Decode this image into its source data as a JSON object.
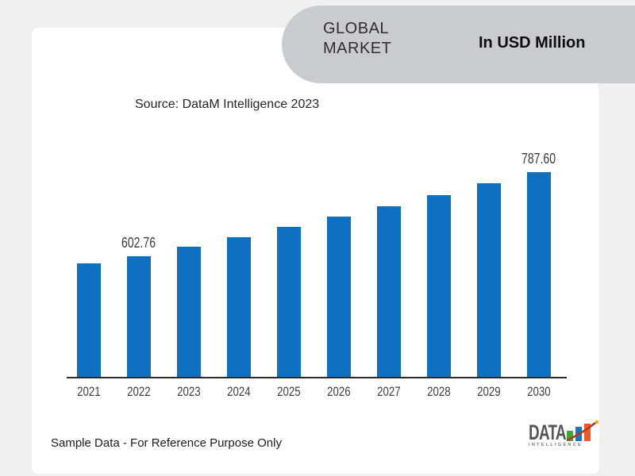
{
  "page": {
    "background": "#f1f0ee",
    "card_background": "#ffffff"
  },
  "banner": {
    "background": "#c8ccd1",
    "title_line1": "GLOBAL",
    "title_line2": "MARKET",
    "unit_label": "In USD Million"
  },
  "source_note": "Source: DataM Intelligence 2023",
  "footer": {
    "disclaimer": "Sample Data - For Reference Purpose Only",
    "logo": {
      "wordmark": "DATA",
      "subtext": "INTELLIGENCE",
      "bar_colors": [
        "#3aaa35",
        "#1b75bb",
        "#f1592a"
      ],
      "swoosh_color": "#b03a1e",
      "dot_color": "#f7a800"
    }
  },
  "chart_data": {
    "type": "bar",
    "title": "Global Market",
    "unit": "USD Million",
    "categories": [
      "2021",
      "2022",
      "2023",
      "2024",
      "2025",
      "2026",
      "2027",
      "2028",
      "2029",
      "2030"
    ],
    "values": [
      588.0,
      602.76,
      623.2,
      644.3,
      666.2,
      688.8,
      712.1,
      736.3,
      761.4,
      787.6
    ],
    "labeled_points": {
      "2022": "602.76",
      "2030": "787.60"
    },
    "bar_color": "#0f70c2",
    "axis_line_color": "#2b2b2b",
    "ylim": [
      340,
      800
    ],
    "grid": false,
    "legend": false,
    "xlabel": "",
    "ylabel": ""
  }
}
